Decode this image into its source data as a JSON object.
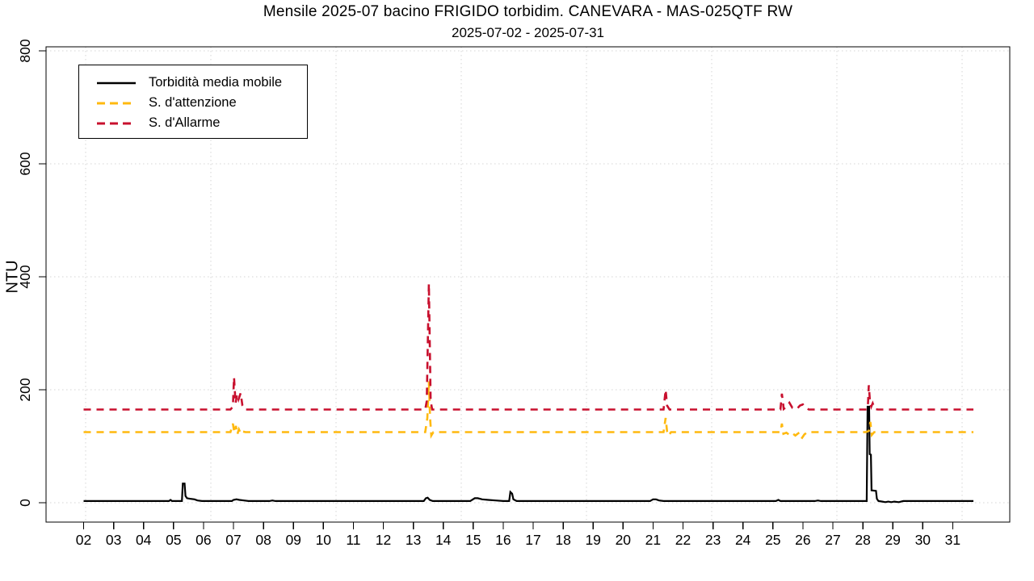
{
  "header": {
    "title": "Mensile 2025-07 bacino FRIGIDO torbidim. CANEVARA - MAS-025QTF RW",
    "subtitle": "2025-07-02 - 2025-07-31"
  },
  "chart_data": {
    "type": "line",
    "title": "Mensile 2025-07 bacino FRIGIDO torbidim. CANEVARA - MAS-025QTF RW",
    "subtitle": "2025-07-02 - 2025-07-31",
    "xlabel": "",
    "ylabel": "NTU",
    "x_unit": "day of July 2025",
    "x_range": [
      2,
      31.7
    ],
    "ylim": [
      0,
      800
    ],
    "y_ticks": [
      0,
      200,
      400,
      600,
      800
    ],
    "x_tick_labels": [
      "02",
      "03",
      "04",
      "05",
      "06",
      "07",
      "08",
      "09",
      "10",
      "11",
      "12",
      "13",
      "14",
      "15",
      "16",
      "17",
      "18",
      "19",
      "20",
      "21",
      "22",
      "23",
      "24",
      "25",
      "26",
      "27",
      "28",
      "29",
      "30",
      "31"
    ],
    "grid": {
      "style": "dotted",
      "color": "#d4d4d4",
      "vertical_days": [
        2.07,
        6.25,
        10.42,
        14.6,
        18.78,
        22.96,
        27.13,
        31.31
      ],
      "horizontal_values": [
        0,
        200,
        400,
        600,
        800
      ]
    },
    "legend_position": "top-left",
    "series": [
      {
        "id": "torbidita-media-mobile",
        "name": "Torbidità media mobile",
        "color": "#000000",
        "style": "solid",
        "width": 2.2,
        "points": [
          [
            2.0,
            3
          ],
          [
            3.0,
            3
          ],
          [
            4.0,
            3
          ],
          [
            4.5,
            3
          ],
          [
            4.85,
            3
          ],
          [
            4.9,
            5
          ],
          [
            4.95,
            3
          ],
          [
            5.28,
            3
          ],
          [
            5.31,
            34
          ],
          [
            5.37,
            34
          ],
          [
            5.4,
            12
          ],
          [
            5.45,
            8
          ],
          [
            5.55,
            7
          ],
          [
            5.7,
            6
          ],
          [
            5.8,
            4
          ],
          [
            5.95,
            3
          ],
          [
            6.5,
            3
          ],
          [
            6.95,
            3
          ],
          [
            7.0,
            5
          ],
          [
            7.1,
            6
          ],
          [
            7.2,
            5
          ],
          [
            7.35,
            4
          ],
          [
            7.5,
            3
          ],
          [
            8.2,
            3
          ],
          [
            8.3,
            4
          ],
          [
            8.4,
            3
          ],
          [
            9.0,
            3
          ],
          [
            10.0,
            3
          ],
          [
            11.0,
            3
          ],
          [
            12.0,
            3
          ],
          [
            13.0,
            3
          ],
          [
            13.35,
            3
          ],
          [
            13.42,
            8
          ],
          [
            13.48,
            9
          ],
          [
            13.55,
            5
          ],
          [
            13.65,
            3
          ],
          [
            14.0,
            3
          ],
          [
            14.9,
            3
          ],
          [
            15.05,
            8
          ],
          [
            15.15,
            8
          ],
          [
            15.3,
            6
          ],
          [
            15.5,
            5
          ],
          [
            15.75,
            4
          ],
          [
            16.0,
            3
          ],
          [
            16.2,
            3
          ],
          [
            16.24,
            19
          ],
          [
            16.3,
            16
          ],
          [
            16.34,
            6
          ],
          [
            16.45,
            3
          ],
          [
            17.0,
            3
          ],
          [
            18.0,
            3
          ],
          [
            19.0,
            3
          ],
          [
            20.0,
            3
          ],
          [
            20.9,
            3
          ],
          [
            21.0,
            6
          ],
          [
            21.1,
            6
          ],
          [
            21.2,
            4
          ],
          [
            21.35,
            3
          ],
          [
            22.0,
            3
          ],
          [
            23.0,
            3
          ],
          [
            24.0,
            3
          ],
          [
            25.1,
            3
          ],
          [
            25.18,
            5
          ],
          [
            25.25,
            3
          ],
          [
            26.0,
            3
          ],
          [
            26.4,
            3
          ],
          [
            26.5,
            4
          ],
          [
            26.6,
            3
          ],
          [
            27.0,
            3
          ],
          [
            28.05,
            3
          ],
          [
            28.13,
            3
          ],
          [
            28.16,
            170
          ],
          [
            28.21,
            170
          ],
          [
            28.23,
            86
          ],
          [
            28.27,
            85
          ],
          [
            28.29,
            22
          ],
          [
            28.44,
            21
          ],
          [
            28.47,
            7
          ],
          [
            28.52,
            3
          ],
          [
            28.65,
            2
          ],
          [
            28.75,
            1
          ],
          [
            28.85,
            2
          ],
          [
            28.95,
            1
          ],
          [
            29.05,
            2
          ],
          [
            29.2,
            1
          ],
          [
            29.35,
            3
          ],
          [
            30.0,
            3
          ],
          [
            31.0,
            3
          ],
          [
            31.69,
            3
          ]
        ]
      },
      {
        "id": "soglia-attenzione",
        "name": "S. d'attenzione",
        "color": "#FFB90F",
        "style": "dashed",
        "width": 2.6,
        "points": [
          [
            2.0,
            125
          ],
          [
            6.9,
            125
          ],
          [
            6.98,
            140
          ],
          [
            7.03,
            124
          ],
          [
            7.08,
            136
          ],
          [
            7.13,
            121
          ],
          [
            7.18,
            130
          ],
          [
            7.25,
            122
          ],
          [
            7.32,
            126
          ],
          [
            7.4,
            125
          ],
          [
            13.4,
            125
          ],
          [
            13.47,
            150
          ],
          [
            13.52,
            215
          ],
          [
            13.56,
            150
          ],
          [
            13.6,
            119
          ],
          [
            13.67,
            125
          ],
          [
            21.35,
            125
          ],
          [
            21.42,
            150
          ],
          [
            21.47,
            126
          ],
          [
            21.52,
            119
          ],
          [
            21.6,
            125
          ],
          [
            25.25,
            125
          ],
          [
            25.3,
            140
          ],
          [
            25.35,
            122
          ],
          [
            25.45,
            124
          ],
          [
            25.55,
            120
          ],
          [
            25.65,
            123
          ],
          [
            25.75,
            119
          ],
          [
            25.85,
            123
          ],
          [
            25.95,
            113
          ],
          [
            26.05,
            121
          ],
          [
            26.15,
            125
          ],
          [
            28.1,
            125
          ],
          [
            28.2,
            127
          ],
          [
            28.25,
            143
          ],
          [
            28.3,
            120
          ],
          [
            28.38,
            125
          ],
          [
            31.69,
            125
          ]
        ]
      },
      {
        "id": "soglia-allarme",
        "name": "S. d'Allarme",
        "color": "#C8102E",
        "style": "dashed",
        "width": 2.6,
        "points": [
          [
            2.0,
            165
          ],
          [
            6.9,
            165
          ],
          [
            6.98,
            170
          ],
          [
            7.02,
            222
          ],
          [
            7.07,
            176
          ],
          [
            7.12,
            192
          ],
          [
            7.17,
            183
          ],
          [
            7.24,
            194
          ],
          [
            7.3,
            172
          ],
          [
            7.38,
            165
          ],
          [
            13.4,
            165
          ],
          [
            13.45,
            180
          ],
          [
            13.52,
            388
          ],
          [
            13.58,
            180
          ],
          [
            13.63,
            165
          ],
          [
            21.35,
            165
          ],
          [
            21.42,
            200
          ],
          [
            21.47,
            172
          ],
          [
            21.55,
            165
          ],
          [
            25.25,
            165
          ],
          [
            25.3,
            193
          ],
          [
            25.36,
            166
          ],
          [
            25.45,
            170
          ],
          [
            25.55,
            177
          ],
          [
            25.65,
            168
          ],
          [
            25.8,
            166
          ],
          [
            25.9,
            172
          ],
          [
            26.0,
            174
          ],
          [
            26.1,
            168
          ],
          [
            26.2,
            165
          ],
          [
            28.12,
            165
          ],
          [
            28.17,
            172
          ],
          [
            28.2,
            208
          ],
          [
            28.24,
            178
          ],
          [
            28.28,
            170
          ],
          [
            28.33,
            176
          ],
          [
            28.4,
            166
          ],
          [
            28.5,
            165
          ],
          [
            31.69,
            165
          ]
        ]
      }
    ]
  }
}
